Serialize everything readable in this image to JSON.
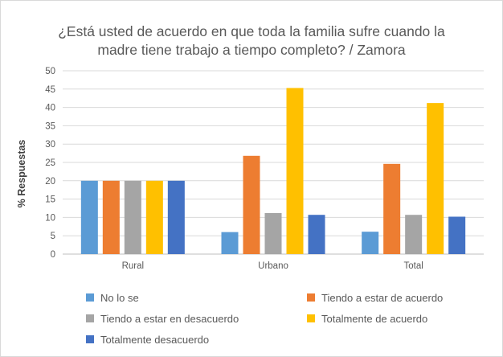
{
  "chart_data": {
    "type": "bar",
    "title_lines": [
      "¿Está usted de acuerdo en que toda la familia sufre cuando la",
      "madre tiene trabajo a tiempo completo? / Zamora"
    ],
    "xlabel": "",
    "ylabel": "% Respuestas",
    "ylim": [
      0,
      50
    ],
    "yticks": [
      0,
      5,
      10,
      15,
      20,
      25,
      30,
      35,
      40,
      45,
      50
    ],
    "grid": true,
    "legend_position": "bottom",
    "categories": [
      "Rural",
      "Urbano",
      "Total"
    ],
    "series": [
      {
        "name": "No lo se",
        "color": "#5b9bd5",
        "values": [
          20,
          6,
          6.1
        ]
      },
      {
        "name": "Tiendo a estar de acuerdo",
        "color": "#ed7d31",
        "values": [
          20,
          26.8,
          24.6
        ]
      },
      {
        "name": "Tiendo a estar en desacuerdo",
        "color": "#a5a5a5",
        "values": [
          20,
          11.2,
          10.7
        ]
      },
      {
        "name": "Totalmente de acuerdo",
        "color": "#ffc000",
        "values": [
          20,
          45.3,
          41.2
        ]
      },
      {
        "name": "Totalmente desacuerdo",
        "color": "#4472c4",
        "values": [
          20,
          10.7,
          10.2
        ]
      }
    ]
  }
}
